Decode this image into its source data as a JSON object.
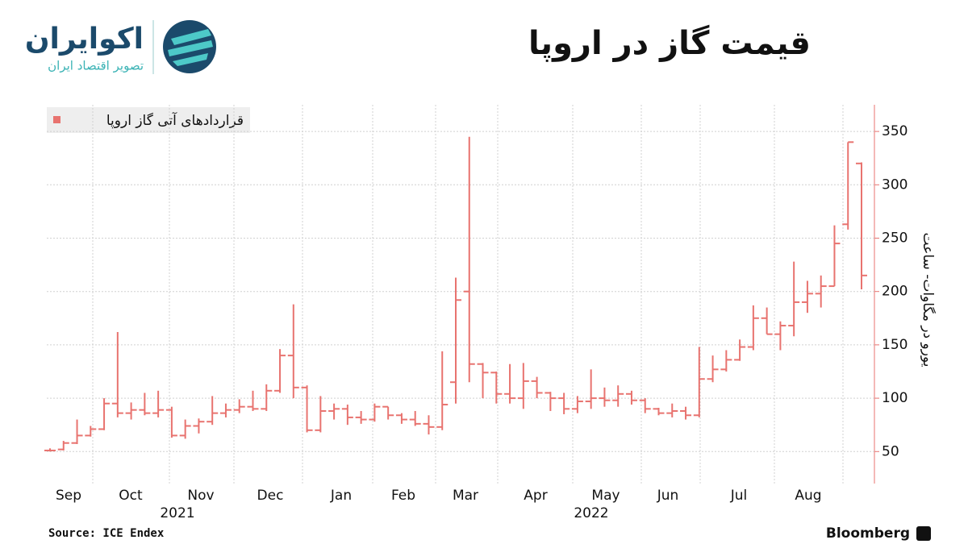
{
  "brand": {
    "name": "اکوایران",
    "tagline": "تصویر اقتصاد ایران"
  },
  "chart_data": {
    "type": "ohlc",
    "title": "قیمت گاز در اروپا",
    "name": "قراردادهای آتی گاز اروپا",
    "color": "#e8736f",
    "y_label": "یورو در مگاوات- ساعت",
    "months": [
      "Sep",
      "Oct",
      "Nov",
      "Dec",
      "Jan",
      "Feb",
      "Mar",
      "Apr",
      "May",
      "Jun",
      "Jul",
      "Aug"
    ],
    "years": [
      "2021",
      "2022"
    ],
    "categories": [
      null,
      null,
      null,
      null,
      null,
      null,
      null,
      null,
      null,
      null,
      null,
      null,
      null,
      null,
      null,
      null,
      null,
      null,
      null,
      null,
      null,
      null,
      null,
      null,
      null,
      null,
      null,
      null,
      null,
      null,
      null,
      null,
      null,
      null,
      null,
      null,
      null,
      null,
      null,
      null,
      null,
      null,
      null,
      null,
      null,
      null,
      null,
      null,
      null,
      null,
      null,
      null,
      null,
      null,
      null,
      null,
      null,
      null,
      null,
      null,
      null
    ],
    "open": [
      51,
      52,
      58,
      65,
      71,
      95,
      86,
      89,
      86,
      89,
      65,
      74,
      78,
      86,
      89,
      92,
      90,
      107,
      140,
      110,
      70,
      88,
      90,
      82,
      80,
      92,
      84,
      80,
      76,
      73,
      115,
      200,
      132,
      124,
      104,
      100,
      116,
      105,
      100,
      90,
      97,
      100,
      98,
      104,
      98,
      90,
      86,
      88,
      84,
      118,
      127,
      136,
      148,
      175,
      160,
      168,
      190,
      198,
      205,
      263,
      320
    ],
    "high": [
      53,
      60,
      80,
      74,
      100,
      162,
      96,
      105,
      107,
      92,
      80,
      81,
      102,
      95,
      99,
      107,
      113,
      146,
      188,
      112,
      102,
      95,
      94,
      88,
      95,
      92,
      86,
      88,
      84,
      144,
      213,
      345,
      133,
      125,
      132,
      133,
      120,
      106,
      105,
      102,
      127,
      110,
      112,
      107,
      100,
      91,
      95,
      92,
      148,
      140,
      145,
      155,
      187,
      185,
      172,
      228,
      210,
      215,
      262,
      340,
      321
    ],
    "low": [
      50,
      51,
      57,
      64,
      70,
      82,
      80,
      84,
      82,
      63,
      62,
      67,
      75,
      82,
      86,
      88,
      88,
      105,
      100,
      68,
      68,
      80,
      75,
      76,
      78,
      80,
      76,
      74,
      66,
      70,
      95,
      115,
      100,
      95,
      95,
      90,
      100,
      88,
      85,
      86,
      90,
      92,
      92,
      94,
      86,
      84,
      82,
      80,
      82,
      115,
      125,
      135,
      145,
      160,
      145,
      158,
      180,
      185,
      205,
      258,
      202
    ],
    "close": [
      51,
      58,
      65,
      71,
      95,
      86,
      89,
      86,
      89,
      65,
      74,
      78,
      86,
      89,
      92,
      90,
      107,
      140,
      110,
      70,
      88,
      90,
      82,
      80,
      92,
      84,
      80,
      76,
      73,
      94,
      192,
      132,
      124,
      104,
      100,
      116,
      105,
      100,
      90,
      97,
      100,
      98,
      104,
      98,
      90,
      86,
      88,
      84,
      118,
      127,
      136,
      148,
      175,
      160,
      168,
      190,
      198,
      205,
      245,
      340,
      215
    ],
    "ylim": [
      20,
      375
    ],
    "yticks": [
      50,
      100,
      150,
      200,
      250,
      300,
      350
    ],
    "grid": true,
    "source": "Source: ICE Endex",
    "credit": "Bloomberg"
  }
}
